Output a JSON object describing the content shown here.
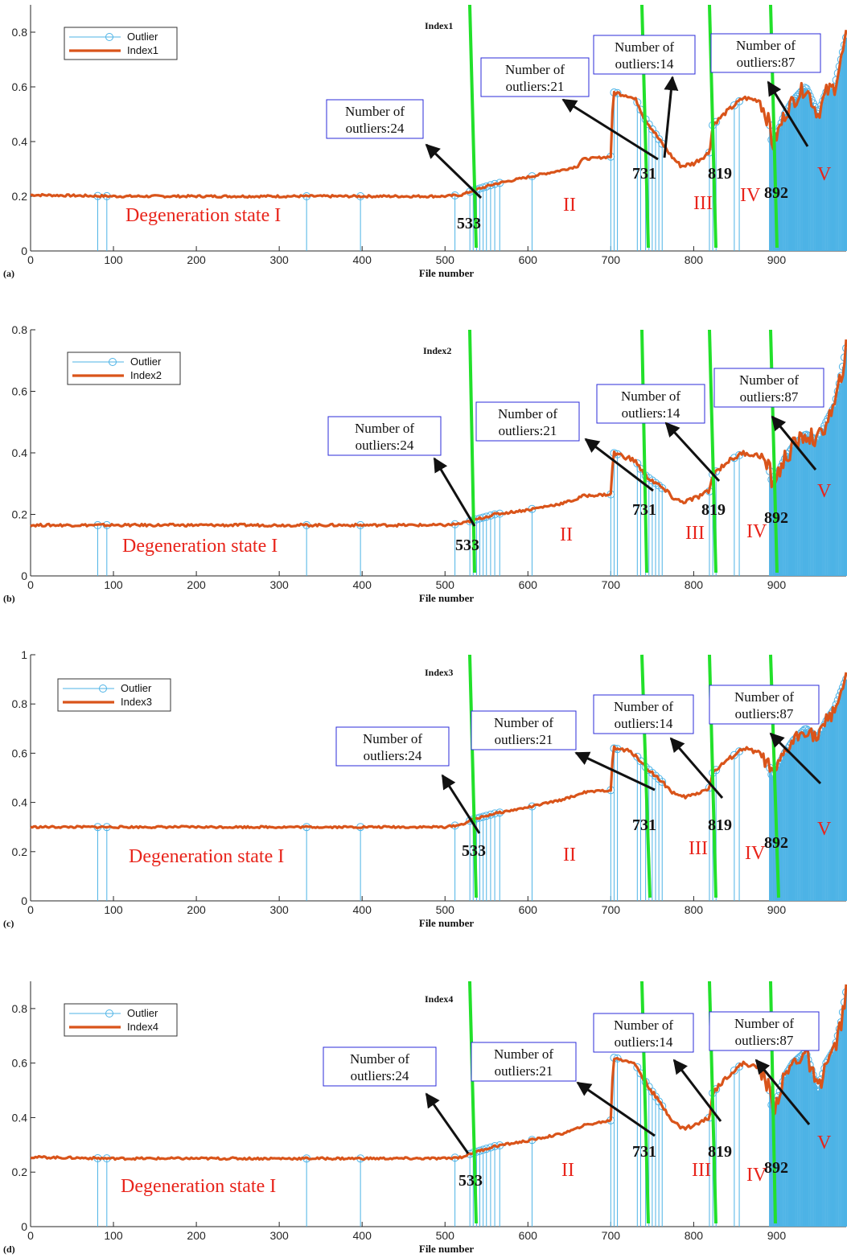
{
  "chart_data": [
    {
      "panel": "(a)",
      "index_label": "Index1",
      "type": "line",
      "xlabel": "File number",
      "xlim": [
        0,
        984
      ],
      "ylim": [
        0,
        0.9
      ],
      "xticks": [
        0,
        100,
        200,
        300,
        400,
        500,
        600,
        700,
        800,
        900
      ],
      "yticks": [
        0,
        0.2,
        0.4,
        0.6,
        0.8
      ],
      "ytick_labels": [
        "0",
        "0.2",
        "0.4",
        "0.6",
        "0.8"
      ],
      "legend": [
        "Outlier",
        "Index1"
      ],
      "curve": [
        [
          0,
          0.205
        ],
        [
          100,
          0.2
        ],
        [
          200,
          0.2
        ],
        [
          300,
          0.2
        ],
        [
          400,
          0.2
        ],
        [
          500,
          0.2
        ],
        [
          520,
          0.205
        ],
        [
          533,
          0.22
        ],
        [
          560,
          0.245
        ],
        [
          600,
          0.27
        ],
        [
          640,
          0.295
        ],
        [
          660,
          0.31
        ],
        [
          665,
          0.335
        ],
        [
          700,
          0.345
        ],
        [
          703,
          0.58
        ],
        [
          720,
          0.57
        ],
        [
          731,
          0.55
        ],
        [
          740,
          0.49
        ],
        [
          760,
          0.4
        ],
        [
          775,
          0.34
        ],
        [
          785,
          0.31
        ],
        [
          800,
          0.32
        ],
        [
          819,
          0.36
        ],
        [
          823,
          0.46
        ],
        [
          840,
          0.51
        ],
        [
          860,
          0.56
        ],
        [
          880,
          0.55
        ],
        [
          892,
          0.46
        ],
        [
          895,
          0.38
        ],
        [
          900,
          0.42
        ],
        [
          910,
          0.5
        ],
        [
          920,
          0.55
        ],
        [
          935,
          0.6
        ],
        [
          950,
          0.5
        ],
        [
          960,
          0.58
        ],
        [
          970,
          0.6
        ],
        [
          978,
          0.7
        ],
        [
          984,
          0.78
        ]
      ],
      "change_points": [
        533,
        731,
        819,
        892
      ],
      "stages": [
        "II",
        "III",
        "IV",
        "V"
      ],
      "degeneration_label": "Degeneration state I",
      "annotations": [
        {
          "line1": "Number of",
          "line2": "outliers:24"
        },
        {
          "line1": "Number of",
          "line2": "outliers:21"
        },
        {
          "line1": "Number of",
          "line2": "outliers:14"
        },
        {
          "line1": "Number of",
          "line2": "outliers:87"
        }
      ]
    },
    {
      "panel": "(b)",
      "index_label": "Index2",
      "type": "line",
      "xlabel": "File number",
      "xlim": [
        0,
        984
      ],
      "ylim": [
        0,
        0.8
      ],
      "xticks": [
        0,
        100,
        200,
        300,
        400,
        500,
        600,
        700,
        800,
        900
      ],
      "yticks": [
        0,
        0.2,
        0.4,
        0.6,
        0.8
      ],
      "ytick_labels": [
        "0",
        "0.2",
        "0.4",
        "0.6",
        "0.8"
      ],
      "legend": [
        "Outlier",
        "Index2"
      ],
      "curve": [
        [
          0,
          0.165
        ],
        [
          100,
          0.165
        ],
        [
          200,
          0.165
        ],
        [
          300,
          0.165
        ],
        [
          400,
          0.165
        ],
        [
          500,
          0.165
        ],
        [
          520,
          0.17
        ],
        [
          533,
          0.18
        ],
        [
          560,
          0.2
        ],
        [
          600,
          0.215
        ],
        [
          640,
          0.235
        ],
        [
          660,
          0.25
        ],
        [
          665,
          0.26
        ],
        [
          700,
          0.265
        ],
        [
          703,
          0.4
        ],
        [
          720,
          0.385
        ],
        [
          731,
          0.37
        ],
        [
          740,
          0.33
        ],
        [
          760,
          0.29
        ],
        [
          775,
          0.255
        ],
        [
          785,
          0.24
        ],
        [
          800,
          0.25
        ],
        [
          819,
          0.275
        ],
        [
          823,
          0.33
        ],
        [
          840,
          0.37
        ],
        [
          860,
          0.4
        ],
        [
          880,
          0.39
        ],
        [
          892,
          0.34
        ],
        [
          895,
          0.3
        ],
        [
          900,
          0.32
        ],
        [
          910,
          0.38
        ],
        [
          920,
          0.42
        ],
        [
          935,
          0.46
        ],
        [
          950,
          0.44
        ],
        [
          960,
          0.5
        ],
        [
          970,
          0.55
        ],
        [
          978,
          0.65
        ],
        [
          984,
          0.74
        ]
      ],
      "change_points": [
        533,
        731,
        819,
        892
      ],
      "stages": [
        "II",
        "III",
        "IV",
        "V"
      ],
      "degeneration_label": "Degeneration state I",
      "annotations": [
        {
          "line1": "Number of",
          "line2": "outliers:24"
        },
        {
          "line1": "Number of",
          "line2": "outliers:21"
        },
        {
          "line1": "Number of",
          "line2": "outliers:14"
        },
        {
          "line1": "Number of",
          "line2": "outliers:87"
        }
      ]
    },
    {
      "panel": "(c)",
      "index_label": "Index3",
      "type": "line",
      "xlabel": "File number",
      "xlim": [
        0,
        984
      ],
      "ylim": [
        0,
        1
      ],
      "xticks": [
        0,
        100,
        200,
        300,
        400,
        500,
        600,
        700,
        800,
        900
      ],
      "yticks": [
        0,
        0.2,
        0.4,
        0.6,
        0.8,
        1
      ],
      "ytick_labels": [
        "0",
        "0.2",
        "0.4",
        "0.6",
        "0.8",
        "1"
      ],
      "legend": [
        "Outlier",
        "Index3"
      ],
      "curve": [
        [
          0,
          0.3
        ],
        [
          100,
          0.3
        ],
        [
          200,
          0.3
        ],
        [
          300,
          0.3
        ],
        [
          400,
          0.3
        ],
        [
          500,
          0.3
        ],
        [
          520,
          0.31
        ],
        [
          533,
          0.33
        ],
        [
          560,
          0.355
        ],
        [
          600,
          0.38
        ],
        [
          640,
          0.41
        ],
        [
          660,
          0.43
        ],
        [
          665,
          0.44
        ],
        [
          700,
          0.45
        ],
        [
          703,
          0.62
        ],
        [
          720,
          0.61
        ],
        [
          731,
          0.59
        ],
        [
          740,
          0.55
        ],
        [
          760,
          0.49
        ],
        [
          775,
          0.44
        ],
        [
          785,
          0.42
        ],
        [
          800,
          0.43
        ],
        [
          819,
          0.46
        ],
        [
          823,
          0.52
        ],
        [
          840,
          0.57
        ],
        [
          860,
          0.62
        ],
        [
          880,
          0.6
        ],
        [
          892,
          0.54
        ],
        [
          895,
          0.5
        ],
        [
          900,
          0.53
        ],
        [
          910,
          0.6
        ],
        [
          920,
          0.65
        ],
        [
          935,
          0.7
        ],
        [
          950,
          0.66
        ],
        [
          960,
          0.73
        ],
        [
          970,
          0.78
        ],
        [
          978,
          0.85
        ],
        [
          984,
          0.9
        ]
      ],
      "change_points": [
        533,
        731,
        819,
        892
      ],
      "stages": [
        "II",
        "III",
        "IV",
        "V"
      ],
      "degeneration_label": "Degeneration state I",
      "annotations": [
        {
          "line1": "Number of",
          "line2": "outliers:24"
        },
        {
          "line1": "Number of",
          "line2": "outliers:21"
        },
        {
          "line1": "Number of",
          "line2": "outliers:14"
        },
        {
          "line1": "Number of",
          "line2": "outliers:87"
        }
      ]
    },
    {
      "panel": "(d)",
      "index_label": "Index4",
      "type": "line",
      "xlabel": "File number",
      "xlim": [
        0,
        984
      ],
      "ylim": [
        0,
        0.9
      ],
      "xticks": [
        0,
        100,
        200,
        300,
        400,
        500,
        600,
        700,
        800,
        900
      ],
      "yticks": [
        0,
        0.2,
        0.4,
        0.6,
        0.8
      ],
      "ytick_labels": [
        "0",
        "0.2",
        "0.4",
        "0.6",
        "0.8"
      ],
      "legend": [
        "Outlier",
        "Index4"
      ],
      "curve": [
        [
          0,
          0.255
        ],
        [
          100,
          0.25
        ],
        [
          200,
          0.25
        ],
        [
          300,
          0.25
        ],
        [
          400,
          0.25
        ],
        [
          500,
          0.25
        ],
        [
          520,
          0.255
        ],
        [
          533,
          0.27
        ],
        [
          560,
          0.295
        ],
        [
          600,
          0.315
        ],
        [
          640,
          0.34
        ],
        [
          660,
          0.36
        ],
        [
          665,
          0.37
        ],
        [
          700,
          0.39
        ],
        [
          703,
          0.62
        ],
        [
          720,
          0.61
        ],
        [
          731,
          0.59
        ],
        [
          740,
          0.54
        ],
        [
          760,
          0.45
        ],
        [
          775,
          0.39
        ],
        [
          785,
          0.36
        ],
        [
          800,
          0.37
        ],
        [
          819,
          0.4
        ],
        [
          823,
          0.49
        ],
        [
          840,
          0.55
        ],
        [
          860,
          0.6
        ],
        [
          880,
          0.58
        ],
        [
          892,
          0.5
        ],
        [
          895,
          0.42
        ],
        [
          900,
          0.46
        ],
        [
          910,
          0.55
        ],
        [
          920,
          0.6
        ],
        [
          935,
          0.64
        ],
        [
          950,
          0.5
        ],
        [
          960,
          0.6
        ],
        [
          970,
          0.65
        ],
        [
          978,
          0.75
        ],
        [
          984,
          0.86
        ]
      ],
      "change_points": [
        533,
        731,
        819,
        892
      ],
      "stages": [
        "II",
        "III",
        "IV",
        "V"
      ],
      "degeneration_label": "Degeneration state I",
      "annotations": [
        {
          "line1": "Number of",
          "line2": "outliers:24"
        },
        {
          "line1": "Number of",
          "line2": "outliers:21"
        },
        {
          "line1": "Number of",
          "line2": "outliers:14"
        },
        {
          "line1": "Number of",
          "line2": "outliers:87"
        }
      ]
    }
  ],
  "colors": {
    "index_line": "#d9541a",
    "outlier": "#4db3e6",
    "change_line": "#22e02a",
    "stage_text": "#e8241b",
    "annotation_box": "#2b2bd9"
  }
}
